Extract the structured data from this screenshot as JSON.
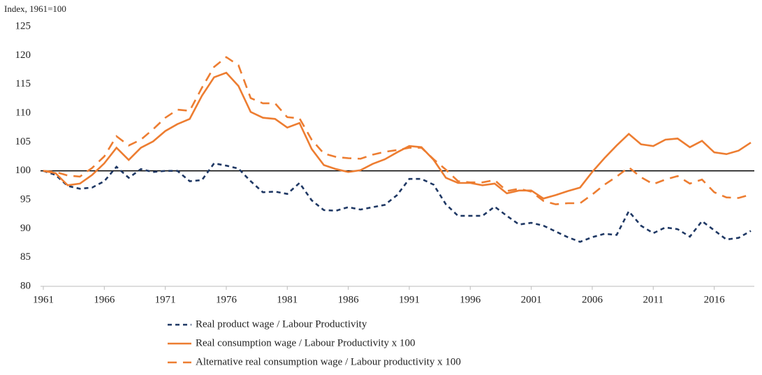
{
  "chart_data": {
    "type": "line",
    "y_axis_label": "Index, 1961=100",
    "x": [
      1961,
      1962,
      1963,
      1964,
      1965,
      1966,
      1967,
      1968,
      1969,
      1970,
      1971,
      1972,
      1973,
      1974,
      1975,
      1976,
      1977,
      1978,
      1979,
      1980,
      1981,
      1982,
      1983,
      1984,
      1985,
      1986,
      1987,
      1988,
      1989,
      1990,
      1991,
      1992,
      1993,
      1994,
      1995,
      1996,
      1997,
      1998,
      1999,
      2000,
      2001,
      2002,
      2003,
      2004,
      2005,
      2006,
      2007,
      2008,
      2009,
      2010,
      2011,
      2012,
      2013,
      2014,
      2015,
      2016,
      2017,
      2018,
      2019
    ],
    "xlim": [
      1961,
      2019
    ],
    "xticks": [
      1961,
      1966,
      1971,
      1976,
      1981,
      1986,
      1991,
      1996,
      2001,
      2006,
      2011,
      2016
    ],
    "ylim": [
      80,
      125
    ],
    "yticks": [
      80,
      85,
      90,
      95,
      100,
      105,
      110,
      115,
      120,
      125
    ],
    "reference_line": 100,
    "legend": "bottom",
    "series": [
      {
        "name": "Real product wage / Labour Productivity",
        "color": "#1f3864",
        "dash": "dashed",
        "values": [
          100,
          99.3,
          97.4,
          96.9,
          97.1,
          98.2,
          100.7,
          98.8,
          100.3,
          99.8,
          100,
          100,
          98.2,
          98.4,
          101.3,
          100.9,
          100.4,
          98.2,
          96.3,
          96.4,
          96,
          97.9,
          94.9,
          93.2,
          93.1,
          93.7,
          93.3,
          93.7,
          94.1,
          95.8,
          98.6,
          98.6,
          97.6,
          94.2,
          92.2,
          92.2,
          92.2,
          93.8,
          92.2,
          90.7,
          91,
          90.5,
          89.5,
          88.5,
          87.7,
          88.5,
          89.1,
          88.9,
          93,
          90.5,
          89.2,
          90.2,
          89.9,
          88.6,
          91.3,
          89.7,
          88.1,
          88.4,
          89.6
        ]
      },
      {
        "name": "Real consumption wage / Labour Productivity x 100",
        "color": "#ed7d31",
        "dash": "solid",
        "values": [
          100,
          99.6,
          97.5,
          97.8,
          99.3,
          101.3,
          104,
          101.9,
          104,
          105.1,
          106.9,
          108.1,
          109,
          113,
          116.2,
          117,
          114.7,
          110.2,
          109.2,
          109,
          107.5,
          108.3,
          103.8,
          101,
          100.3,
          99.8,
          100.1,
          101.2,
          102,
          103.2,
          104.3,
          104.1,
          101.9,
          98.8,
          97.9,
          97.9,
          97.5,
          97.8,
          96.1,
          96.6,
          96.6,
          95.2,
          95.8,
          96.5,
          97.1,
          99.8,
          102.2,
          104.4,
          106.4,
          104.6,
          104.3,
          105.4,
          105.6,
          104.1,
          105.2,
          103.2,
          102.9,
          103.5,
          104.9
        ]
      },
      {
        "name": "Alternative real consumption wage / Labour productivity x 100",
        "color": "#ed7d31",
        "dash": "long-dashed",
        "values": [
          100,
          99.8,
          99.2,
          99,
          100.5,
          102.5,
          106,
          104.4,
          105.4,
          107.2,
          109.2,
          110.6,
          110.4,
          114.4,
          118,
          119.7,
          118.3,
          112.6,
          111.7,
          111.7,
          109.3,
          109.1,
          105.4,
          103,
          102.4,
          102.2,
          102.1,
          102.8,
          103.3,
          103.6,
          104,
          104,
          102,
          100.2,
          98.2,
          98,
          98,
          98.4,
          96.5,
          96.9,
          96.4,
          94.8,
          94.2,
          94.4,
          94.4,
          95.9,
          97.6,
          99,
          100.6,
          98.9,
          97.7,
          98.5,
          99.1,
          97.8,
          98.5,
          96.3,
          95.4,
          95.3,
          95.9
        ]
      }
    ]
  }
}
